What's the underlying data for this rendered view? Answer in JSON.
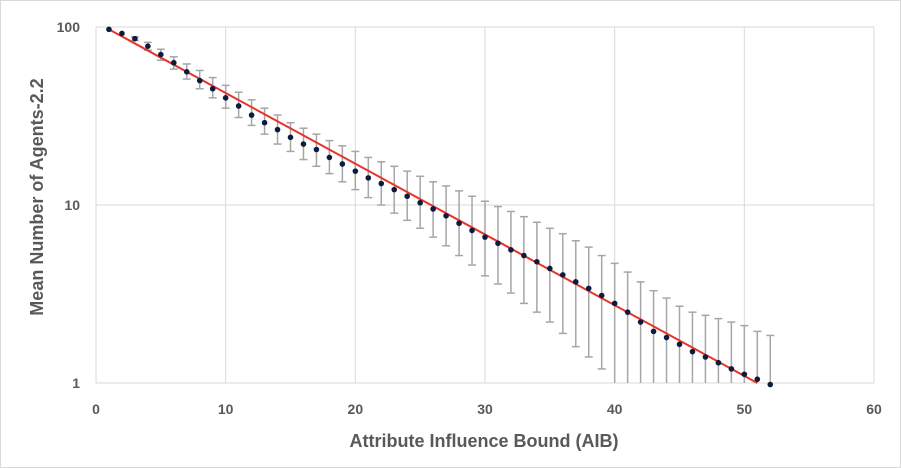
{
  "chart_data": {
    "type": "scatter",
    "title": "",
    "xlabel": "Attribute Influence Bound (AIB)",
    "ylabel": "Mean Number of Agents-2.2",
    "xlim": [
      0,
      60
    ],
    "ylim": [
      1,
      100
    ],
    "yscale": "log",
    "grid": true,
    "legend": "none",
    "x_ticks": [
      "0",
      "10",
      "20",
      "30",
      "40",
      "50",
      "60"
    ],
    "y_ticks": [
      "1",
      "10",
      "100"
    ],
    "colors": {
      "points": "#0d1b3e",
      "fit": "#e8332a",
      "error_bars": "#a6a6a6",
      "grid": "#d9d9d9"
    },
    "series": [
      {
        "type": "scatter",
        "x": [
          1,
          2,
          3,
          4,
          5,
          6,
          7,
          8,
          9,
          10,
          11,
          12,
          13,
          14,
          15,
          16,
          17,
          18,
          19,
          20,
          21,
          22,
          23,
          24,
          25,
          26,
          27,
          28,
          29,
          30,
          31,
          32,
          33,
          34,
          35,
          36,
          37,
          38,
          39,
          40,
          41,
          42,
          43,
          44,
          45,
          46,
          47,
          48,
          49,
          50,
          51,
          52
        ],
        "y": [
          97,
          92,
          86,
          78,
          70,
          63,
          56,
          50,
          45,
          40,
          36,
          32,
          29,
          26.5,
          24,
          22,
          20.5,
          18.5,
          17,
          15.5,
          14.2,
          13.2,
          12.2,
          11.2,
          10.3,
          9.5,
          8.7,
          7.9,
          7.2,
          6.6,
          6.1,
          5.6,
          5.2,
          4.8,
          4.4,
          4.05,
          3.7,
          3.4,
          3.1,
          2.8,
          2.5,
          2.2,
          1.95,
          1.8,
          1.65,
          1.5,
          1.4,
          1.3,
          1.2,
          1.12,
          1.05,
          0.98
        ],
        "error_high": [
          97,
          92,
          88,
          82,
          75,
          68,
          62,
          57,
          52,
          47,
          43,
          39,
          35,
          32,
          29,
          27,
          25,
          23,
          21.5,
          20,
          18.5,
          17.5,
          16.5,
          15.5,
          14.5,
          13.5,
          12.8,
          12,
          11.2,
          10.5,
          9.8,
          9.2,
          8.6,
          8,
          7.4,
          6.9,
          6.3,
          5.8,
          5.2,
          4.7,
          4.2,
          3.7,
          3.3,
          3,
          2.7,
          2.5,
          2.4,
          2.3,
          2.2,
          2.1,
          1.95,
          1.85
        ],
        "error_low": [
          97,
          92,
          84,
          74,
          65,
          58,
          51,
          45,
          40,
          35,
          31,
          28,
          25,
          22,
          20,
          18,
          16.5,
          15,
          13.5,
          12.2,
          11,
          10,
          9,
          8.2,
          7.4,
          6.6,
          5.9,
          5.2,
          4.6,
          4,
          3.6,
          3.2,
          2.8,
          2.5,
          2.2,
          1.9,
          1.6,
          1.4,
          1.2,
          1,
          1,
          1,
          1,
          1,
          1,
          1,
          1,
          1,
          1,
          1,
          1,
          1
        ]
      },
      {
        "type": "line",
        "x": [
          1,
          51
        ],
        "y": [
          97,
          1
        ]
      }
    ]
  }
}
